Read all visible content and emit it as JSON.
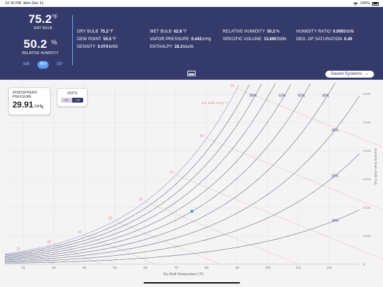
{
  "status_bar": {
    "time": "12:16 PM",
    "date": "Mon Dec 11",
    "battery": "100%",
    "icons": [
      "wifi-icon",
      "battery-icon"
    ]
  },
  "primary": {
    "dry_bulb": {
      "value": "75.2",
      "unit": "°F",
      "label": "DRY BULB"
    },
    "relative_humidity": {
      "value": "50.2",
      "unit": "%",
      "label": "RELATIVE HUMIDITY"
    }
  },
  "mode_toggle": {
    "options": [
      "WB",
      "RH",
      "DP"
    ],
    "selected": "RH"
  },
  "readings": [
    {
      "label": "DRY BULB",
      "value": "75.2",
      "unit": "°F"
    },
    {
      "label": "DEW POINT",
      "value": "55.5",
      "unit": "°F"
    },
    {
      "label": "DENSITY",
      "value": "0.074",
      "unit": "lb/ft3"
    },
    {
      "label": "WET BULB",
      "value": "62.8",
      "unit": "°F"
    },
    {
      "label": "VAPOR PRESSURE",
      "value": "0.443",
      "unit": "inHg"
    },
    {
      "label": "ENTHALPY",
      "value": "28.3",
      "unit": "btu/lb"
    },
    {
      "label": "RELATIVE HUMIDITY",
      "value": "50.2",
      "unit": "%"
    },
    {
      "label": "SPECIFIC VOLUME",
      "value": "13.690",
      "unit": "ft3/lb"
    },
    {
      "label": "HUMIDITY RATIO",
      "value": "0.0093",
      "unit": "lb/lb"
    },
    {
      "label": "DEG. OF SATURATION",
      "value": "0.49",
      "unit": ""
    }
  ],
  "saved_systems": {
    "label": "Saved Systems",
    "arrow": "→"
  },
  "atmospheric": {
    "label_line1": "ATMOSPHERIC",
    "label_line2": "PRESSURE",
    "value": "29.91",
    "unit": "inHg"
  },
  "units": {
    "label": "UNITS",
    "options": [
      "S.I",
      "I-P"
    ],
    "selected": "I-P"
  },
  "colors": {
    "header_bg": "#343b6b",
    "accent": "#5a9ff6",
    "rh_line": "#3b3f6a",
    "wb_line": "#e38f8f",
    "point": "#2ea7c9",
    "divider": "#6aa9ff"
  },
  "chart_data": {
    "type": "scatter",
    "title": "",
    "xlabel": "Dry Bulb Temperature (°F)",
    "ylabel": "Humidity Ratio (lb/lb d.a)",
    "x_ticks": [
      20,
      30,
      40,
      50,
      60,
      70,
      80,
      90,
      100,
      110,
      120
    ],
    "y_ticks": [
      0,
      0.005,
      0.01,
      0.015,
      0.02,
      0.025,
      0.03
    ],
    "y_tick_labels": [
      "0",
      "0.005",
      "0.010",
      "0.015",
      "0.020",
      "0.025",
      "0.030"
    ],
    "xlim": [
      14,
      130
    ],
    "ylim": [
      0,
      0.032
    ],
    "rh_curves": [
      10,
      20,
      30,
      40,
      50,
      60,
      70,
      80,
      90,
      100
    ],
    "rh_labels": [
      {
        "rh": 10,
        "text": "10%"
      },
      {
        "rh": 20,
        "text": "20%"
      },
      {
        "rh": 30,
        "text": "30%"
      },
      {
        "rh": 40,
        "text": "40%"
      },
      {
        "rh": 50,
        "text": "50%"
      },
      {
        "rh": 60,
        "text": "60%"
      },
      {
        "rh": 80,
        "text": "80%"
      }
    ],
    "wet_bulb_lines": [
      20,
      30,
      40,
      50,
      60,
      70,
      80,
      90
    ],
    "wet_bulb_labels": [
      "20",
      "30",
      "40",
      "50",
      "60",
      "70",
      "80",
      "90"
    ],
    "wet_bulb_axis_label": "Wet Bulb Temp °F",
    "point": {
      "dry_bulb": 75.2,
      "humidity_ratio": 0.0093
    },
    "grid": true
  }
}
